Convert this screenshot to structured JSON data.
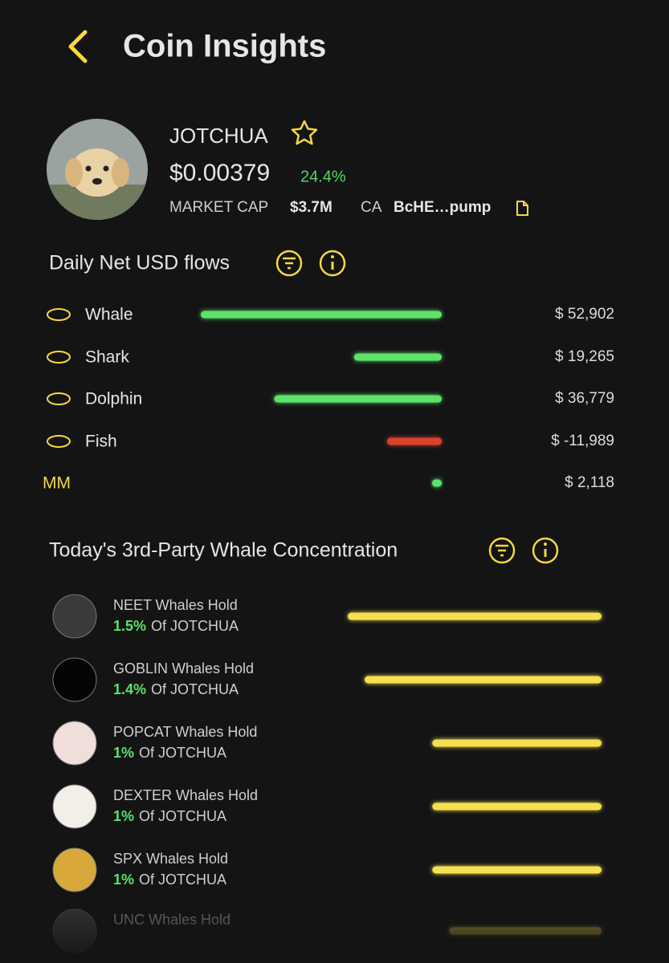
{
  "header": {
    "title": "Coin Insights"
  },
  "coin": {
    "name": "JOTCHUA",
    "price": "$0.00379",
    "change": "24.4%",
    "market_cap_label": "MARKET CAP",
    "market_cap": "$3.7M",
    "ca_label": "CA",
    "ca": "BcHE…pump"
  },
  "flows": {
    "title": "Daily Net USD flows",
    "rows": [
      {
        "name": "Whale",
        "amount": "$ 52,902",
        "value": 52902
      },
      {
        "name": "Shark",
        "amount": "$ 19,265",
        "value": 19265
      },
      {
        "name": "Dolphin",
        "amount": "$ 36,779",
        "value": 36779
      },
      {
        "name": "Fish",
        "amount": "$ -11,989",
        "value": -11989
      },
      {
        "name": "MM",
        "amount": "$ 2,118",
        "value": 2118
      }
    ]
  },
  "concentration": {
    "title": "Today's 3rd-Party Whale Concentration",
    "rows": [
      {
        "holder": "NEET Whales Hold",
        "pct": "1.5%",
        "suffix": "Of JOTCHUA",
        "value": 1.5
      },
      {
        "holder": "GOBLIN Whales Hold",
        "pct": "1.4%",
        "suffix": "Of JOTCHUA",
        "value": 1.4
      },
      {
        "holder": "POPCAT Whales Hold",
        "pct": "1%",
        "suffix": "Of JOTCHUA",
        "value": 1
      },
      {
        "holder": "DEXTER Whales Hold",
        "pct": "1%",
        "suffix": "Of JOTCHUA",
        "value": 1
      },
      {
        "holder": "SPX Whales Hold",
        "pct": "1%",
        "suffix": "Of JOTCHUA",
        "value": 1
      },
      {
        "holder": "UNC Whales Hold",
        "value": 0.9
      }
    ]
  }
}
